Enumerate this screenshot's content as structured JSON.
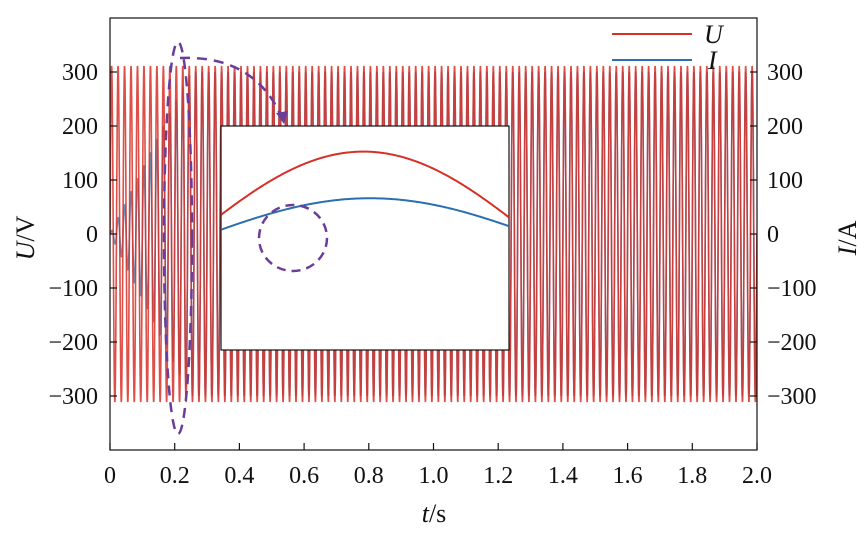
{
  "chart_data": {
    "type": "line",
    "x_label": {
      "var": "t",
      "unit": "/s"
    },
    "y_left_label": {
      "var": "U",
      "unit": "/V"
    },
    "y_right_label": {
      "var": "I",
      "unit": "/A"
    },
    "x_ticks": [
      "0",
      "0.2",
      "0.4",
      "0.6",
      "0.8",
      "1.0",
      "1.2",
      "1.4",
      "1.6",
      "1.8",
      "2.0"
    ],
    "y_ticks": [
      "300",
      "200",
      "100",
      "0",
      "−100",
      "−200",
      "−300"
    ],
    "y_right_ticks": [
      "300",
      "200",
      "100",
      "0",
      "−100",
      "−200",
      "−300"
    ],
    "xlim": [
      0,
      2.0
    ],
    "ylim": [
      -400,
      400
    ],
    "y_right_lim": [
      -400,
      400
    ],
    "series": [
      {
        "name": "U",
        "color": "#d73027",
        "amplitude": 311,
        "frequency_hz": 50
      },
      {
        "name": "I",
        "color": "#2c6fb0",
        "amplitude": 300,
        "frequency_hz": 50,
        "ramp_end_s": 0.25
      }
    ],
    "legend": {
      "position": "top-right",
      "entries": [
        "U",
        "I"
      ]
    },
    "grid": false,
    "inset": {
      "description_series": [
        {
          "name": "U",
          "color": "#d73027",
          "peak": 165
        },
        {
          "name": "I",
          "color": "#2c6fb0",
          "peak": 75
        }
      ],
      "highlight_color": "#6a3d9a"
    }
  }
}
